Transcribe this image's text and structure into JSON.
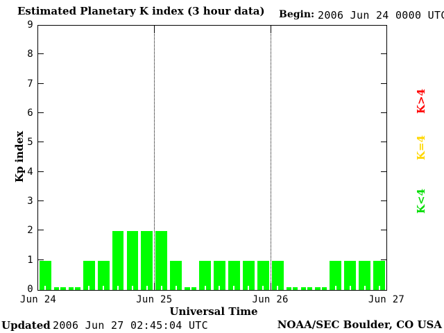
{
  "chart_data": {
    "type": "bar",
    "title": "Estimated Planetary K index (3 hour data)",
    "begin": {
      "label": "Begin:",
      "value": "2006 Jun 24 0000 UTC"
    },
    "xlabel": "Universal Time",
    "ylabel": "Kp index",
    "interval_hours": 3,
    "ylim": [
      0,
      9
    ],
    "y_tick_labels": [
      "0",
      "1",
      "2",
      "3",
      "4",
      "5",
      "6",
      "7",
      "8",
      "9"
    ],
    "x_tick_labels": [
      "Jun 24",
      "Jun 25",
      "Jun 26",
      "Jun 27"
    ],
    "days": 3,
    "bars_per_day": 8,
    "values": [
      1,
      0,
      0,
      1,
      1,
      2,
      2,
      2,
      2,
      1,
      0,
      1,
      1,
      1,
      1,
      1,
      1,
      0,
      0,
      0,
      1,
      1,
      1,
      1
    ],
    "bar_color": "#00FF00",
    "grid": "vertical dotted lines at day boundaries",
    "legend_position": "right",
    "legend": [
      {
        "label": "K>4",
        "color": "#FF0000"
      },
      {
        "label": "K=4",
        "color": "#FFD700"
      },
      {
        "label": "K<4",
        "color": "#00DD00"
      }
    ]
  },
  "footer": {
    "updated_label": "Updated",
    "updated_value": "2006 Jun 27 02:45:04 UTC",
    "credit": "NOAA/SEC Boulder, CO USA"
  }
}
